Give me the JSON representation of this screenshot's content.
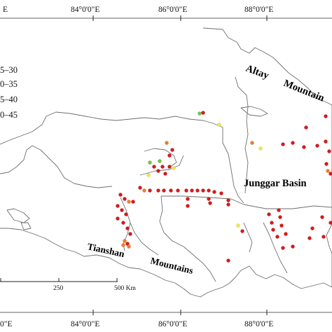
{
  "graticule": {
    "top": [
      "84°0'0\"E",
      "86°0'0\"E",
      "88°0'0\"E"
    ],
    "bottom": [
      "84°0'0\"E",
      "86°0'0\"E",
      "88°0'0\"E"
    ],
    "top_left_partial": "E",
    "bottom_left_partial": "0\"E"
  },
  "legend": {
    "items": [
      {
        "label": "5–30",
        "color": "#7ac143"
      },
      {
        "label": "0–35",
        "color": "#f2e64b"
      },
      {
        "label": "5–40",
        "color": "#f07c2b"
      },
      {
        "label": "0–45",
        "color": "#d7191c"
      }
    ]
  },
  "labels": {
    "altay_1": "Altay",
    "altay_2": "Mountain",
    "junggar": "Junggar Basin",
    "tianshan_1": "Tianshan",
    "tianshan_2": "Mountains"
  },
  "scale_bar": {
    "mid_label": "250",
    "end_label": "500 Km"
  },
  "colors": {
    "red": "#d7191c",
    "orange": "#f07c2b",
    "yellow": "#f2e64b",
    "green": "#7ac143",
    "boundary": "#6e6e6e"
  }
}
